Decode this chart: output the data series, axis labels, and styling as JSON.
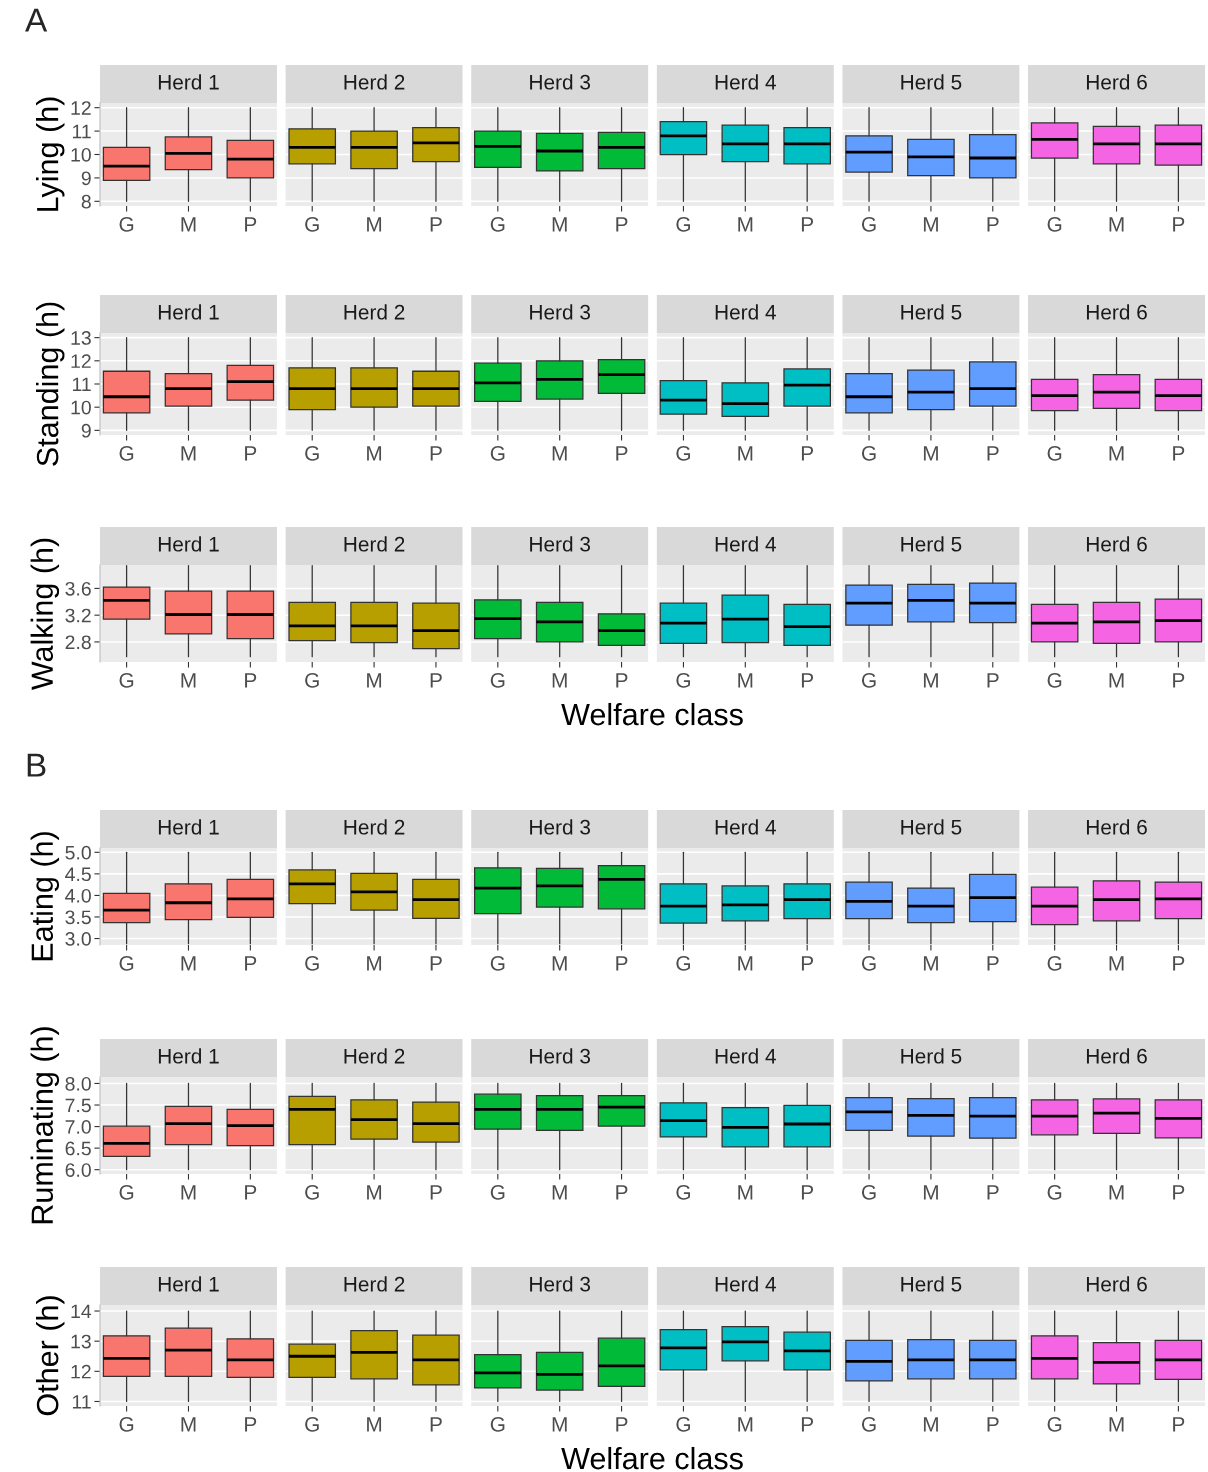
{
  "chart_data": [
    {
      "type": "box",
      "ylabel": "Lying (h)",
      "annotations": [
        "A"
      ],
      "categories": [
        "G",
        "M",
        "P",
        "G",
        "M",
        "P",
        "G",
        "M",
        "P",
        "G",
        "M",
        "P",
        "G",
        "M",
        "P",
        "G",
        "M",
        "P"
      ],
      "ylim": [
        7.8,
        12.2
      ],
      "yticks": [
        8,
        9,
        10,
        11,
        12
      ],
      "grid": "y",
      "series": [
        {
          "name": "Herd 1",
          "color": "#f8766d",
          "boxes": [
            {
              "low": 8,
              "q1": 8.9,
              "median": 9.5,
              "q3": 10.3,
              "high": 12
            },
            {
              "low": 8,
              "q1": 9.35,
              "median": 10.05,
              "q3": 10.75,
              "high": 12
            },
            {
              "low": 8,
              "q1": 9.0,
              "median": 9.8,
              "q3": 10.6,
              "high": 12
            },
            null,
            null,
            null,
            null,
            null,
            null,
            null,
            null,
            null,
            null,
            null,
            null,
            null,
            null,
            null
          ]
        },
        {
          "name": "Herd 2",
          "color": "#b79f00",
          "boxes": [
            null,
            null,
            null,
            {
              "low": 8,
              "q1": 9.6,
              "median": 10.3,
              "q3": 11.1,
              "high": 12
            },
            {
              "low": 8,
              "q1": 9.4,
              "median": 10.3,
              "q3": 11.0,
              "high": 12
            },
            {
              "low": 8,
              "q1": 9.7,
              "median": 10.5,
              "q3": 11.15,
              "high": 12
            },
            null,
            null,
            null,
            null,
            null,
            null,
            null,
            null,
            null,
            null,
            null,
            null
          ]
        },
        {
          "name": "Herd 3",
          "color": "#00ba38",
          "boxes": [
            null,
            null,
            null,
            null,
            null,
            null,
            {
              "low": 8,
              "q1": 9.45,
              "median": 10.35,
              "q3": 11.0,
              "high": 12
            },
            {
              "low": 8,
              "q1": 9.3,
              "median": 10.15,
              "q3": 10.9,
              "high": 12
            },
            {
              "low": 8,
              "q1": 9.4,
              "median": 10.3,
              "q3": 10.95,
              "high": 12
            },
            null,
            null,
            null,
            null,
            null,
            null,
            null,
            null,
            null
          ]
        },
        {
          "name": "Herd 4",
          "color": "#00bfc4",
          "boxes": [
            null,
            null,
            null,
            null,
            null,
            null,
            null,
            null,
            null,
            {
              "low": 8,
              "q1": 10.0,
              "median": 10.8,
              "q3": 11.4,
              "high": 12
            },
            {
              "low": 8,
              "q1": 9.7,
              "median": 10.45,
              "q3": 11.25,
              "high": 12
            },
            {
              "low": 8,
              "q1": 9.6,
              "median": 10.45,
              "q3": 11.15,
              "high": 12
            },
            null,
            null,
            null,
            null,
            null,
            null
          ]
        },
        {
          "name": "Herd 5",
          "color": "#619cff",
          "boxes": [
            null,
            null,
            null,
            null,
            null,
            null,
            null,
            null,
            null,
            null,
            null,
            null,
            {
              "low": 8,
              "q1": 9.25,
              "median": 10.1,
              "q3": 10.8,
              "high": 12
            },
            {
              "low": 8,
              "q1": 9.1,
              "median": 9.9,
              "q3": 10.65,
              "high": 12
            },
            {
              "low": 8,
              "q1": 9.0,
              "median": 9.85,
              "q3": 10.85,
              "high": 12
            },
            null,
            null,
            null
          ]
        },
        {
          "name": "Herd 6",
          "color": "#f564e3",
          "boxes": [
            null,
            null,
            null,
            null,
            null,
            null,
            null,
            null,
            null,
            null,
            null,
            null,
            null,
            null,
            null,
            {
              "low": 8,
              "q1": 9.85,
              "median": 10.65,
              "q3": 11.35,
              "high": 12
            },
            {
              "low": 8,
              "q1": 9.6,
              "median": 10.45,
              "q3": 11.2,
              "high": 12
            },
            {
              "low": 8,
              "q1": 9.55,
              "median": 10.45,
              "q3": 11.25,
              "high": 12
            }
          ]
        }
      ]
    },
    {
      "type": "box",
      "ylabel": "Standing (h)",
      "categories": [
        "G",
        "M",
        "P",
        "G",
        "M",
        "P",
        "G",
        "M",
        "P",
        "G",
        "M",
        "P",
        "G",
        "M",
        "P",
        "G",
        "M",
        "P"
      ],
      "ylim": [
        8.8,
        13.2
      ],
      "yticks": [
        9,
        10,
        11,
        12,
        13
      ],
      "grid": "y",
      "series": [
        {
          "name": "Herd 1",
          "color": "#f8766d",
          "boxes": [
            {
              "low": 9,
              "q1": 9.75,
              "median": 10.45,
              "q3": 11.55,
              "high": 13
            },
            {
              "low": 9,
              "q1": 10.05,
              "median": 10.8,
              "q3": 11.45,
              "high": 13
            },
            {
              "low": 9,
              "q1": 10.3,
              "median": 11.1,
              "q3": 11.8,
              "high": 13
            },
            null,
            null,
            null,
            null,
            null,
            null,
            null,
            null,
            null,
            null,
            null,
            null,
            null,
            null,
            null
          ]
        },
        {
          "name": "Herd 2",
          "color": "#b79f00",
          "boxes": [
            null,
            null,
            null,
            {
              "low": 9,
              "q1": 9.9,
              "median": 10.8,
              "q3": 11.7,
              "high": 13
            },
            {
              "low": 9,
              "q1": 10.0,
              "median": 10.8,
              "q3": 11.7,
              "high": 13
            },
            {
              "low": 9,
              "q1": 10.05,
              "median": 10.8,
              "q3": 11.55,
              "high": 13
            },
            null,
            null,
            null,
            null,
            null,
            null,
            null,
            null,
            null,
            null,
            null,
            null
          ]
        },
        {
          "name": "Herd 3",
          "color": "#00ba38",
          "boxes": [
            null,
            null,
            null,
            null,
            null,
            null,
            {
              "low": 9,
              "q1": 10.25,
              "median": 11.05,
              "q3": 11.9,
              "high": 13
            },
            {
              "low": 9,
              "q1": 10.35,
              "median": 11.2,
              "q3": 12.0,
              "high": 13
            },
            {
              "low": 9,
              "q1": 10.6,
              "median": 11.4,
              "q3": 12.05,
              "high": 13
            },
            null,
            null,
            null,
            null,
            null,
            null,
            null,
            null,
            null
          ]
        },
        {
          "name": "Herd 4",
          "color": "#00bfc4",
          "boxes": [
            null,
            null,
            null,
            null,
            null,
            null,
            null,
            null,
            null,
            {
              "low": 9,
              "q1": 9.7,
              "median": 10.3,
              "q3": 11.15,
              "high": 13
            },
            {
              "low": 9,
              "q1": 9.6,
              "median": 10.15,
              "q3": 11.05,
              "high": 13
            },
            {
              "low": 9,
              "q1": 10.05,
              "median": 10.95,
              "q3": 11.65,
              "high": 13
            },
            null,
            null,
            null,
            null,
            null,
            null
          ]
        },
        {
          "name": "Herd 5",
          "color": "#619cff",
          "boxes": [
            null,
            null,
            null,
            null,
            null,
            null,
            null,
            null,
            null,
            null,
            null,
            null,
            {
              "low": 9,
              "q1": 9.75,
              "median": 10.45,
              "q3": 11.45,
              "high": 13
            },
            {
              "low": 9,
              "q1": 9.9,
              "median": 10.65,
              "q3": 11.6,
              "high": 13
            },
            {
              "low": 9,
              "q1": 10.05,
              "median": 10.8,
              "q3": 11.95,
              "high": 13
            },
            null,
            null,
            null
          ]
        },
        {
          "name": "Herd 6",
          "color": "#f564e3",
          "boxes": [
            null,
            null,
            null,
            null,
            null,
            null,
            null,
            null,
            null,
            null,
            null,
            null,
            null,
            null,
            null,
            {
              "low": 9,
              "q1": 9.85,
              "median": 10.5,
              "q3": 11.2,
              "high": 13
            },
            {
              "low": 9,
              "q1": 9.95,
              "median": 10.65,
              "q3": 11.4,
              "high": 13
            },
            {
              "low": 9,
              "q1": 9.85,
              "median": 10.5,
              "q3": 11.2,
              "high": 13
            }
          ]
        }
      ]
    },
    {
      "type": "box",
      "ylabel": "Walking (h)",
      "xlabel": "Welfare class",
      "categories": [
        "G",
        "M",
        "P",
        "G",
        "M",
        "P",
        "G",
        "M",
        "P",
        "G",
        "M",
        "P",
        "G",
        "M",
        "P",
        "G",
        "M",
        "P"
      ],
      "ylim": [
        2.5,
        3.95
      ],
      "yticks": [
        2.8,
        3.2,
        3.6
      ],
      "grid": "y",
      "series": [
        {
          "name": "Herd 1",
          "color": "#f8766d",
          "boxes": [
            {
              "low": 2.58,
              "q1": 3.14,
              "median": 3.42,
              "q3": 3.62,
              "high": 3.94
            },
            {
              "low": 2.58,
              "q1": 2.92,
              "median": 3.21,
              "q3": 3.56,
              "high": 3.94
            },
            {
              "low": 2.58,
              "q1": 2.85,
              "median": 3.21,
              "q3": 3.56,
              "high": 3.94
            },
            null,
            null,
            null,
            null,
            null,
            null,
            null,
            null,
            null,
            null,
            null,
            null,
            null,
            null,
            null
          ]
        },
        {
          "name": "Herd 2",
          "color": "#b79f00",
          "boxes": [
            null,
            null,
            null,
            {
              "low": 2.58,
              "q1": 2.82,
              "median": 3.04,
              "q3": 3.39,
              "high": 3.94
            },
            {
              "low": 2.58,
              "q1": 2.79,
              "median": 3.04,
              "q3": 3.39,
              "high": 3.94
            },
            {
              "low": 2.58,
              "q1": 2.7,
              "median": 2.97,
              "q3": 3.38,
              "high": 3.94
            },
            null,
            null,
            null,
            null,
            null,
            null,
            null,
            null,
            null,
            null,
            null,
            null
          ]
        },
        {
          "name": "Herd 3",
          "color": "#00ba38",
          "boxes": [
            null,
            null,
            null,
            null,
            null,
            null,
            {
              "low": 2.58,
              "q1": 2.85,
              "median": 3.15,
              "q3": 3.43,
              "high": 3.94
            },
            {
              "low": 2.58,
              "q1": 2.8,
              "median": 3.1,
              "q3": 3.39,
              "high": 3.94
            },
            {
              "low": 2.58,
              "q1": 2.75,
              "median": 2.97,
              "q3": 3.22,
              "high": 3.94
            },
            null,
            null,
            null,
            null,
            null,
            null,
            null,
            null,
            null
          ]
        },
        {
          "name": "Herd 4",
          "color": "#00bfc4",
          "boxes": [
            null,
            null,
            null,
            null,
            null,
            null,
            null,
            null,
            null,
            {
              "low": 2.58,
              "q1": 2.78,
              "median": 3.08,
              "q3": 3.38,
              "high": 3.94
            },
            {
              "low": 2.58,
              "q1": 2.79,
              "median": 3.14,
              "q3": 3.5,
              "high": 3.94
            },
            {
              "low": 2.58,
              "q1": 2.75,
              "median": 3.03,
              "q3": 3.36,
              "high": 3.94
            },
            null,
            null,
            null,
            null,
            null,
            null
          ]
        },
        {
          "name": "Herd 5",
          "color": "#619cff",
          "boxes": [
            null,
            null,
            null,
            null,
            null,
            null,
            null,
            null,
            null,
            null,
            null,
            null,
            {
              "low": 2.58,
              "q1": 3.05,
              "median": 3.38,
              "q3": 3.65,
              "high": 3.94
            },
            {
              "low": 2.58,
              "q1": 3.1,
              "median": 3.42,
              "q3": 3.66,
              "high": 3.94
            },
            {
              "low": 2.58,
              "q1": 3.09,
              "median": 3.38,
              "q3": 3.68,
              "high": 3.94
            },
            null,
            null,
            null
          ]
        },
        {
          "name": "Herd 6",
          "color": "#f564e3",
          "boxes": [
            null,
            null,
            null,
            null,
            null,
            null,
            null,
            null,
            null,
            null,
            null,
            null,
            null,
            null,
            null,
            {
              "low": 2.58,
              "q1": 2.8,
              "median": 3.08,
              "q3": 3.36,
              "high": 3.94
            },
            {
              "low": 2.58,
              "q1": 2.78,
              "median": 3.1,
              "q3": 3.39,
              "high": 3.94
            },
            {
              "low": 2.58,
              "q1": 2.8,
              "median": 3.12,
              "q3": 3.44,
              "high": 3.94
            }
          ]
        }
      ]
    },
    {
      "type": "box",
      "ylabel": "Eating (h)",
      "annotations": [
        "B"
      ],
      "categories": [
        "G",
        "M",
        "P",
        "G",
        "M",
        "P",
        "G",
        "M",
        "P",
        "G",
        "M",
        "P",
        "G",
        "M",
        "P",
        "G",
        "M",
        "P"
      ],
      "ylim": [
        2.85,
        5.1
      ],
      "yticks": [
        {
          "value": 3,
          "label": "3.0"
        },
        3.5,
        {
          "value": 4,
          "label": "4.0"
        },
        4.5,
        {
          "value": 5,
          "label": "5.0"
        }
      ],
      "grid": "y",
      "series": [
        {
          "name": "Herd 1",
          "color": "#f8766d",
          "boxes": [
            {
              "low": 2.88,
              "q1": 3.37,
              "median": 3.66,
              "q3": 4.05,
              "high": 5.0
            },
            {
              "low": 2.88,
              "q1": 3.44,
              "median": 3.83,
              "q3": 4.27,
              "high": 5.0
            },
            {
              "low": 2.88,
              "q1": 3.49,
              "median": 3.92,
              "q3": 4.37,
              "high": 5.0
            },
            null,
            null,
            null,
            null,
            null,
            null,
            null,
            null,
            null,
            null,
            null,
            null,
            null,
            null,
            null
          ]
        },
        {
          "name": "Herd 2",
          "color": "#b79f00",
          "boxes": [
            null,
            null,
            null,
            {
              "low": 2.88,
              "q1": 3.81,
              "median": 4.27,
              "q3": 4.59,
              "high": 5.0
            },
            {
              "low": 2.88,
              "q1": 3.66,
              "median": 4.08,
              "q3": 4.51,
              "high": 5.0
            },
            {
              "low": 2.88,
              "q1": 3.47,
              "median": 3.9,
              "q3": 4.37,
              "high": 5.0
            },
            null,
            null,
            null,
            null,
            null,
            null,
            null,
            null,
            null,
            null,
            null,
            null
          ]
        },
        {
          "name": "Herd 3",
          "color": "#00ba38",
          "boxes": [
            null,
            null,
            null,
            null,
            null,
            null,
            {
              "low": 2.88,
              "q1": 3.58,
              "median": 4.17,
              "q3": 4.64,
              "high": 5.0
            },
            {
              "low": 2.88,
              "q1": 3.73,
              "median": 4.22,
              "q3": 4.63,
              "high": 5.0
            },
            {
              "low": 2.88,
              "q1": 3.69,
              "median": 4.37,
              "q3": 4.69,
              "high": 5.0
            },
            null,
            null,
            null,
            null,
            null,
            null,
            null,
            null,
            null
          ]
        },
        {
          "name": "Herd 4",
          "color": "#00bfc4",
          "boxes": [
            null,
            null,
            null,
            null,
            null,
            null,
            null,
            null,
            null,
            {
              "low": 2.88,
              "q1": 3.36,
              "median": 3.75,
              "q3": 4.27,
              "high": 5.0
            },
            {
              "low": 2.88,
              "q1": 3.41,
              "median": 3.78,
              "q3": 4.22,
              "high": 5.0
            },
            {
              "low": 2.88,
              "q1": 3.46,
              "median": 3.9,
              "q3": 4.27,
              "high": 5.0
            },
            null,
            null,
            null,
            null,
            null,
            null
          ]
        },
        {
          "name": "Herd 5",
          "color": "#619cff",
          "boxes": [
            null,
            null,
            null,
            null,
            null,
            null,
            null,
            null,
            null,
            null,
            null,
            null,
            {
              "low": 2.88,
              "q1": 3.46,
              "median": 3.86,
              "q3": 4.31,
              "high": 5.0
            },
            {
              "low": 2.88,
              "q1": 3.37,
              "median": 3.75,
              "q3": 4.17,
              "high": 5.0
            },
            {
              "low": 2.88,
              "q1": 3.39,
              "median": 3.95,
              "q3": 4.49,
              "high": 5.0
            },
            null,
            null,
            null
          ]
        },
        {
          "name": "Herd 6",
          "color": "#f564e3",
          "boxes": [
            null,
            null,
            null,
            null,
            null,
            null,
            null,
            null,
            null,
            null,
            null,
            null,
            null,
            null,
            null,
            {
              "low": 2.88,
              "q1": 3.32,
              "median": 3.75,
              "q3": 4.19,
              "high": 5.0
            },
            {
              "low": 2.88,
              "q1": 3.41,
              "median": 3.9,
              "q3": 4.34,
              "high": 5.0
            },
            {
              "low": 2.88,
              "q1": 3.46,
              "median": 3.92,
              "q3": 4.31,
              "high": 5.0
            }
          ]
        }
      ]
    },
    {
      "type": "box",
      "ylabel": "Ruminating (h)",
      "categories": [
        "G",
        "M",
        "P",
        "G",
        "M",
        "P",
        "G",
        "M",
        "P",
        "G",
        "M",
        "P",
        "G",
        "M",
        "P",
        "G",
        "M",
        "P"
      ],
      "ylim": [
        5.9,
        8.15
      ],
      "yticks": [
        {
          "value": 6,
          "label": "6.0"
        },
        6.5,
        {
          "value": 7,
          "label": "7.0"
        },
        7.5,
        {
          "value": 8,
          "label": "8.0"
        }
      ],
      "grid": "y",
      "series": [
        {
          "name": "Herd 1",
          "color": "#f8766d",
          "boxes": [
            {
              "low": 6.0,
              "q1": 6.31,
              "median": 6.61,
              "q3": 7.01,
              "high": 8.0
            },
            {
              "low": 6.0,
              "q1": 6.58,
              "median": 7.07,
              "q3": 7.47,
              "high": 8.0
            },
            {
              "low": 6.0,
              "q1": 6.56,
              "median": 7.02,
              "q3": 7.4,
              "high": 8.0
            },
            null,
            null,
            null,
            null,
            null,
            null,
            null,
            null,
            null,
            null,
            null,
            null,
            null,
            null,
            null
          ]
        },
        {
          "name": "Herd 2",
          "color": "#b79f00",
          "boxes": [
            null,
            null,
            null,
            {
              "low": 6.0,
              "q1": 6.58,
              "median": 7.4,
              "q3": 7.7,
              "high": 8.0
            },
            {
              "low": 6.0,
              "q1": 6.71,
              "median": 7.16,
              "q3": 7.62,
              "high": 8.0
            },
            {
              "low": 6.0,
              "q1": 6.64,
              "median": 7.07,
              "q3": 7.57,
              "high": 8.0
            },
            null,
            null,
            null,
            null,
            null,
            null,
            null,
            null,
            null,
            null,
            null,
            null
          ]
        },
        {
          "name": "Herd 3",
          "color": "#00ba38",
          "boxes": [
            null,
            null,
            null,
            null,
            null,
            null,
            {
              "low": 6.0,
              "q1": 6.94,
              "median": 7.4,
              "q3": 7.75,
              "high": 8.0
            },
            {
              "low": 6.0,
              "q1": 6.91,
              "median": 7.4,
              "q3": 7.72,
              "high": 8.0
            },
            {
              "low": 6.0,
              "q1": 7.01,
              "median": 7.45,
              "q3": 7.72,
              "high": 8.0
            },
            null,
            null,
            null,
            null,
            null,
            null,
            null,
            null,
            null
          ]
        },
        {
          "name": "Herd 4",
          "color": "#00bfc4",
          "boxes": [
            null,
            null,
            null,
            null,
            null,
            null,
            null,
            null,
            null,
            {
              "low": 6.0,
              "q1": 6.76,
              "median": 7.14,
              "q3": 7.55,
              "high": 8.0
            },
            {
              "low": 6.0,
              "q1": 6.53,
              "median": 6.98,
              "q3": 7.44,
              "high": 8.0
            },
            {
              "low": 6.0,
              "q1": 6.53,
              "median": 7.06,
              "q3": 7.49,
              "high": 8.0
            },
            null,
            null,
            null,
            null,
            null,
            null
          ]
        },
        {
          "name": "Herd 5",
          "color": "#619cff",
          "boxes": [
            null,
            null,
            null,
            null,
            null,
            null,
            null,
            null,
            null,
            null,
            null,
            null,
            {
              "low": 6.0,
              "q1": 6.91,
              "median": 7.34,
              "q3": 7.67,
              "high": 8.0
            },
            {
              "low": 6.0,
              "q1": 6.78,
              "median": 7.26,
              "q3": 7.65,
              "high": 8.0
            },
            {
              "low": 6.0,
              "q1": 6.73,
              "median": 7.24,
              "q3": 7.67,
              "high": 8.0
            },
            null,
            null,
            null
          ]
        },
        {
          "name": "Herd 6",
          "color": "#f564e3",
          "boxes": [
            null,
            null,
            null,
            null,
            null,
            null,
            null,
            null,
            null,
            null,
            null,
            null,
            null,
            null,
            null,
            {
              "low": 6.0,
              "q1": 6.81,
              "median": 7.24,
              "q3": 7.62,
              "high": 8.0
            },
            {
              "low": 6.0,
              "q1": 6.84,
              "median": 7.31,
              "q3": 7.64,
              "high": 8.0
            },
            {
              "low": 6.0,
              "q1": 6.74,
              "median": 7.19,
              "q3": 7.62,
              "high": 8.0
            }
          ]
        }
      ]
    },
    {
      "type": "box",
      "ylabel": "Other (h)",
      "xlabel": "Welfare class",
      "categories": [
        "G",
        "M",
        "P",
        "G",
        "M",
        "P",
        "G",
        "M",
        "P",
        "G",
        "M",
        "P",
        "G",
        "M",
        "P",
        "G",
        "M",
        "P"
      ],
      "ylim": [
        10.85,
        14.2
      ],
      "yticks": [
        11,
        12,
        13,
        14
      ],
      "grid": "y",
      "series": [
        {
          "name": "Herd 1",
          "color": "#f8766d",
          "boxes": [
            {
              "low": 11,
              "q1": 11.83,
              "median": 12.43,
              "q3": 13.18,
              "high": 14
            },
            {
              "low": 11,
              "q1": 11.83,
              "median": 12.7,
              "q3": 13.43,
              "high": 14
            },
            {
              "low": 11,
              "q1": 11.8,
              "median": 12.38,
              "q3": 13.08,
              "high": 14
            },
            null,
            null,
            null,
            null,
            null,
            null,
            null,
            null,
            null,
            null,
            null,
            null,
            null,
            null,
            null
          ]
        },
        {
          "name": "Herd 2",
          "color": "#b79f00",
          "boxes": [
            null,
            null,
            null,
            {
              "low": 11,
              "q1": 11.8,
              "median": 12.5,
              "q3": 12.9,
              "high": 14
            },
            {
              "low": 11,
              "q1": 11.75,
              "median": 12.63,
              "q3": 13.35,
              "high": 14
            },
            {
              "low": 11,
              "q1": 11.55,
              "median": 12.38,
              "q3": 13.2,
              "high": 14
            },
            null,
            null,
            null,
            null,
            null,
            null,
            null,
            null,
            null,
            null,
            null,
            null
          ]
        },
        {
          "name": "Herd 3",
          "color": "#00ba38",
          "boxes": [
            null,
            null,
            null,
            null,
            null,
            null,
            {
              "low": 11,
              "q1": 11.45,
              "median": 11.95,
              "q3": 12.55,
              "high": 14
            },
            {
              "low": 11,
              "q1": 11.38,
              "median": 11.9,
              "q3": 12.63,
              "high": 14
            },
            {
              "low": 11,
              "q1": 11.5,
              "median": 12.18,
              "q3": 13.1,
              "high": 14
            },
            null,
            null,
            null,
            null,
            null,
            null,
            null,
            null,
            null
          ]
        },
        {
          "name": "Herd 4",
          "color": "#00bfc4",
          "boxes": [
            null,
            null,
            null,
            null,
            null,
            null,
            null,
            null,
            null,
            {
              "low": 11,
              "q1": 12.05,
              "median": 12.78,
              "q3": 13.38,
              "high": 14
            },
            {
              "low": 11,
              "q1": 12.35,
              "median": 12.98,
              "q3": 13.48,
              "high": 14
            },
            {
              "low": 11,
              "q1": 12.05,
              "median": 12.68,
              "q3": 13.3,
              "high": 14
            },
            null,
            null,
            null,
            null,
            null,
            null
          ]
        },
        {
          "name": "Herd 5",
          "color": "#619cff",
          "boxes": [
            null,
            null,
            null,
            null,
            null,
            null,
            null,
            null,
            null,
            null,
            null,
            null,
            {
              "low": 11,
              "q1": 11.68,
              "median": 12.33,
              "q3": 13.03,
              "high": 14
            },
            {
              "low": 11,
              "q1": 11.75,
              "median": 12.38,
              "q3": 13.05,
              "high": 14
            },
            {
              "low": 11,
              "q1": 11.75,
              "median": 12.38,
              "q3": 13.03,
              "high": 14
            },
            null,
            null,
            null
          ]
        },
        {
          "name": "Herd 6",
          "color": "#f564e3",
          "boxes": [
            null,
            null,
            null,
            null,
            null,
            null,
            null,
            null,
            null,
            null,
            null,
            null,
            null,
            null,
            null,
            {
              "low": 11,
              "q1": 11.75,
              "median": 12.43,
              "q3": 13.18,
              "high": 14
            },
            {
              "low": 11,
              "q1": 11.58,
              "median": 12.3,
              "q3": 12.95,
              "high": 14
            },
            {
              "low": 11,
              "q1": 11.73,
              "median": 12.38,
              "q3": 13.03,
              "high": 14
            }
          ]
        }
      ]
    }
  ]
}
